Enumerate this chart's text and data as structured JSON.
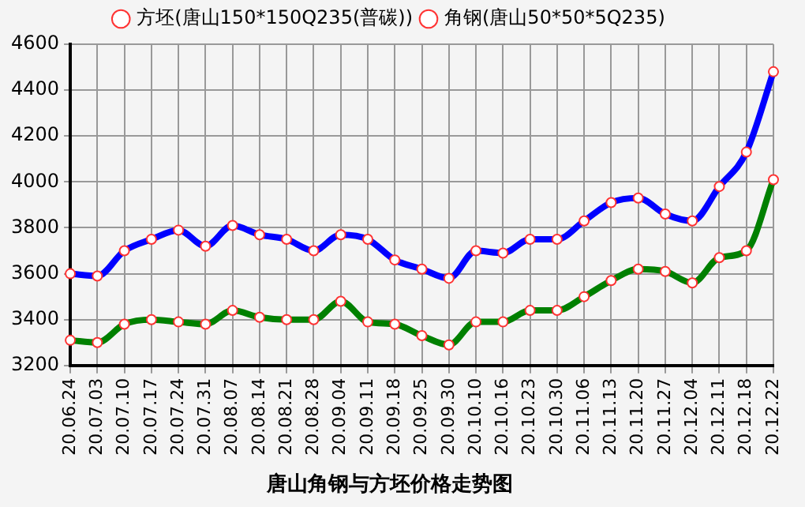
{
  "chart_data": {
    "type": "line",
    "title": "唐山角钢与方坯价格走势图",
    "categories": [
      "20.06.24",
      "20.07.03",
      "20.07.10",
      "20.07.17",
      "20.07.24",
      "20.07.31",
      "20.08.07",
      "20.08.14",
      "20.08.21",
      "20.08.28",
      "20.09.04",
      "20.09.11",
      "20.09.18",
      "20.09.25",
      "20.09.30",
      "20.10.10",
      "20.10.16",
      "20.10.23",
      "20.10.30",
      "20.11.06",
      "20.11.13",
      "20.11.20",
      "20.11.27",
      "20.12.04",
      "20.12.11",
      "20.12.18",
      "20.12.22"
    ],
    "series": [
      {
        "name": "方坯(唐山150*150Q235(普碳))",
        "color": "#008000",
        "values": [
          3310,
          3300,
          3380,
          3400,
          3390,
          3380,
          3440,
          3410,
          3400,
          3400,
          3480,
          3390,
          3380,
          3330,
          3290,
          3390,
          3390,
          3440,
          3440,
          3500,
          3570,
          3620,
          3610,
          3560,
          3670,
          3700,
          4010
        ]
      },
      {
        "name": "角钢(唐山50*50*5Q235)",
        "color": "#0000ff",
        "values": [
          3600,
          3590,
          3700,
          3750,
          3790,
          3720,
          3810,
          3770,
          3750,
          3700,
          3770,
          3750,
          3660,
          3620,
          3580,
          3700,
          3690,
          3750,
          3750,
          3830,
          3910,
          3930,
          3860,
          3830,
          3980,
          4130,
          4480
        ]
      }
    ],
    "ylim": [
      3200,
      4600
    ],
    "yticks": [
      3200,
      3400,
      3600,
      3800,
      4000,
      4200,
      4400,
      4600
    ],
    "grid": true,
    "legend": "top",
    "marker": "circle",
    "line_style": "solid"
  }
}
